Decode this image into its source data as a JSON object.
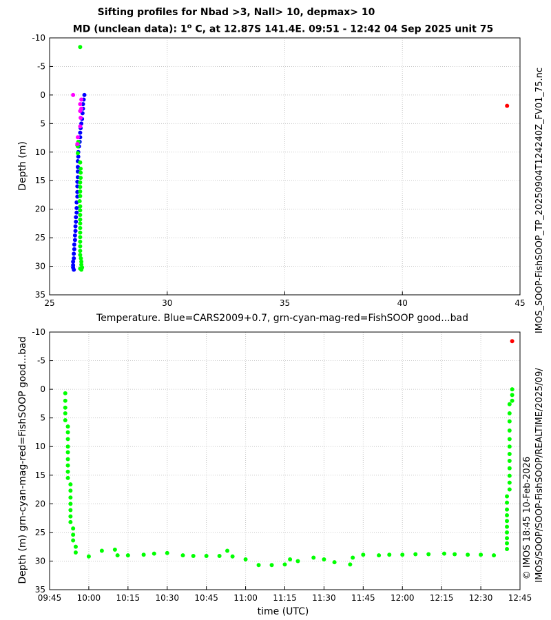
{
  "page": {
    "title_line1": "Sifting profiles for Nbad >3, Nall> 10, depmax> 10",
    "title_line2_prefix": "MD (unclean data): 1",
    "title_line2_degree": "o",
    "title_line2_suffix": " C, at 12.87S 141.4E. 09:51 - 12:42 04 Sep 2025 unit 75",
    "right_label_top": "IMOS_SOOP-FishSOOP_TP_20250904T124240Z_FV01_75.nc",
    "right_label_bottom": "IMOS/SOOP/SOOP-FishSOOP/REALTIME/2025/09/",
    "left_side_label": "© IMOS 18:45 10-Feb-2026"
  },
  "colors": {
    "blue": "#0000ff",
    "green": "#00ff00",
    "magenta": "#ff00ff",
    "red": "#ff0000",
    "grid": "#c8c8c8"
  },
  "chart_data": [
    {
      "type": "scatter",
      "xlabel": "Temperature. Blue=CARS2009+0.7, grn-cyan-mag-red=FishSOOP good...bad",
      "ylabel": "Depth (m)",
      "xlim": [
        25,
        45
      ],
      "ylim": [
        35,
        -10
      ],
      "xticks": [
        "25",
        "30",
        "35",
        "40",
        "45"
      ],
      "yticks": [
        "-10",
        "-5",
        "0",
        "5",
        "10",
        "15",
        "20",
        "25",
        "30",
        "35"
      ],
      "grid": true,
      "series": [
        {
          "color": "blue",
          "points": [
            [
              26.48,
              0.0
            ],
            [
              26.45,
              0.8
            ],
            [
              26.42,
              1.6
            ],
            [
              26.42,
              2.4
            ],
            [
              26.4,
              3.2
            ],
            [
              26.38,
              4.2
            ],
            [
              26.35,
              5.0
            ],
            [
              26.32,
              5.8
            ],
            [
              26.3,
              6.6
            ],
            [
              26.3,
              7.4
            ],
            [
              26.28,
              8.2
            ],
            [
              26.25,
              9.0
            ],
            [
              26.22,
              10.0
            ],
            [
              26.22,
              10.8
            ],
            [
              26.2,
              11.6
            ],
            [
              26.2,
              12.6
            ],
            [
              26.2,
              13.4
            ],
            [
              26.2,
              14.4
            ],
            [
              26.18,
              15.2
            ],
            [
              26.18,
              16.0
            ],
            [
              26.18,
              17.0
            ],
            [
              26.18,
              17.8
            ],
            [
              26.15,
              18.8
            ],
            [
              26.15,
              19.8
            ],
            [
              26.15,
              20.6
            ],
            [
              26.12,
              21.4
            ],
            [
              26.12,
              22.2
            ],
            [
              26.1,
              23.0
            ],
            [
              26.1,
              23.8
            ],
            [
              26.08,
              24.6
            ],
            [
              26.08,
              25.4
            ],
            [
              26.05,
              26.2
            ],
            [
              26.05,
              27.0
            ],
            [
              26.03,
              27.8
            ],
            [
              26.03,
              28.6
            ],
            [
              26.0,
              29.2
            ],
            [
              26.0,
              29.8
            ],
            [
              26.0,
              30.2
            ],
            [
              26.03,
              30.6
            ]
          ]
        },
        {
          "color": "green",
          "points": [
            [
              26.3,
              -8.4
            ],
            [
              26.3,
              11.8
            ],
            [
              26.32,
              12.9
            ],
            [
              26.32,
              13.6
            ],
            [
              26.32,
              14.5
            ],
            [
              26.3,
              15.3
            ],
            [
              26.3,
              16.1
            ],
            [
              26.3,
              16.9
            ],
            [
              26.3,
              17.7
            ],
            [
              26.28,
              18.6
            ],
            [
              26.3,
              19.5
            ],
            [
              26.3,
              20.2
            ],
            [
              26.3,
              21.0
            ],
            [
              26.3,
              21.8
            ],
            [
              26.3,
              22.5
            ],
            [
              26.3,
              23.3
            ],
            [
              26.3,
              24.1
            ],
            [
              26.3,
              24.9
            ],
            [
              26.3,
              25.7
            ],
            [
              26.3,
              26.5
            ],
            [
              26.3,
              27.3
            ],
            [
              26.3,
              28.0
            ],
            [
              26.33,
              28.6
            ],
            [
              26.35,
              29.2
            ],
            [
              26.35,
              29.7
            ],
            [
              26.38,
              30.2
            ],
            [
              26.35,
              30.6
            ],
            [
              26.3,
              30.4
            ],
            [
              26.2,
              10.2
            ],
            [
              26.2,
              9.0
            ],
            [
              26.22,
              8.2
            ],
            [
              26.18,
              8.8
            ]
          ]
        },
        {
          "color": "magenta",
          "points": [
            [
              26.0,
              0.0
            ],
            [
              26.35,
              0.8
            ],
            [
              26.3,
              1.6
            ],
            [
              26.35,
              2.4
            ],
            [
              26.3,
              2.8
            ],
            [
              26.32,
              4.0
            ],
            [
              26.3,
              5.5
            ],
            [
              26.2,
              7.4
            ],
            [
              26.18,
              8.6
            ]
          ]
        },
        {
          "color": "red",
          "points": [
            [
              44.45,
              1.9
            ]
          ]
        }
      ]
    },
    {
      "type": "scatter",
      "xlabel": "time (UTC)",
      "ylabel": "Depth (m) grn-cyan-mag-red=FishSOOP good...bad",
      "xlim": [
        "09:45",
        "12:45"
      ],
      "ylim": [
        35,
        -10
      ],
      "xticks": [
        "09:45",
        "10:00",
        "10:15",
        "10:30",
        "10:45",
        "11:00",
        "11:15",
        "11:30",
        "11:45",
        "12:00",
        "12:15",
        "12:30",
        "12:45"
      ],
      "yticks": [
        "-10",
        "-5",
        "0",
        "5",
        "10",
        "15",
        "20",
        "25",
        "30",
        "35"
      ],
      "grid": true,
      "series": [
        {
          "color": "green",
          "points": [
            [
              "09:51",
              0.7
            ],
            [
              "09:51",
              2.0
            ],
            [
              "09:51",
              3.2
            ],
            [
              "09:51",
              4.2
            ],
            [
              "09:51",
              5.4
            ],
            [
              "09:52",
              6.5
            ],
            [
              "09:52",
              7.5
            ],
            [
              "09:52",
              8.7
            ],
            [
              "09:52",
              10.0
            ],
            [
              "09:52",
              11.0
            ],
            [
              "09:52",
              12.2
            ],
            [
              "09:52",
              13.3
            ],
            [
              "09:52",
              14.4
            ],
            [
              "09:52",
              15.5
            ],
            [
              "09:53",
              16.6
            ],
            [
              "09:53",
              17.7
            ],
            [
              "09:53",
              18.9
            ],
            [
              "09:53",
              20.0
            ],
            [
              "09:53",
              21.1
            ],
            [
              "09:53",
              22.2
            ],
            [
              "09:53",
              23.2
            ],
            [
              "09:54",
              24.3
            ],
            [
              "09:54",
              25.4
            ],
            [
              "09:54",
              26.4
            ],
            [
              "09:55",
              27.5
            ],
            [
              "09:55",
              28.5
            ],
            [
              "10:00",
              29.2
            ],
            [
              "10:05",
              28.2
            ],
            [
              "10:10",
              28.0
            ],
            [
              "10:11",
              29.0
            ],
            [
              "10:15",
              29.0
            ],
            [
              "10:21",
              28.9
            ],
            [
              "10:25",
              28.7
            ],
            [
              "10:30",
              28.6
            ],
            [
              "10:36",
              29.0
            ],
            [
              "10:40",
              29.1
            ],
            [
              "10:45",
              29.1
            ],
            [
              "10:50",
              29.1
            ],
            [
              "10:53",
              28.2
            ],
            [
              "10:55",
              29.2
            ],
            [
              "11:00",
              29.7
            ],
            [
              "11:05",
              30.7
            ],
            [
              "11:10",
              30.7
            ],
            [
              "11:15",
              30.6
            ],
            [
              "11:17",
              29.7
            ],
            [
              "11:20",
              30.0
            ],
            [
              "11:26",
              29.4
            ],
            [
              "11:30",
              29.7
            ],
            [
              "11:34",
              30.2
            ],
            [
              "11:40",
              30.6
            ],
            [
              "11:41",
              29.4
            ],
            [
              "11:45",
              28.9
            ],
            [
              "11:51",
              29.0
            ],
            [
              "11:55",
              28.9
            ],
            [
              "12:00",
              28.9
            ],
            [
              "12:05",
              28.8
            ],
            [
              "12:10",
              28.8
            ],
            [
              "12:16",
              28.7
            ],
            [
              "12:20",
              28.8
            ],
            [
              "12:25",
              28.9
            ],
            [
              "12:30",
              28.9
            ],
            [
              "12:35",
              29.0
            ],
            [
              "12:40",
              27.9
            ],
            [
              "12:40",
              26.9
            ],
            [
              "12:40",
              26.0
            ],
            [
              "12:40",
              25.0
            ],
            [
              "12:40",
              24.0
            ],
            [
              "12:40",
              23.0
            ],
            [
              "12:40",
              22.0
            ],
            [
              "12:40",
              21.0
            ],
            [
              "12:40",
              19.8
            ],
            [
              "12:40",
              18.7
            ],
            [
              "12:41",
              17.5
            ],
            [
              "12:41",
              16.3
            ],
            [
              "12:41",
              15.1
            ],
            [
              "12:41",
              13.8
            ],
            [
              "12:41",
              12.5
            ],
            [
              "12:41",
              11.3
            ],
            [
              "12:41",
              10.0
            ],
            [
              "12:41",
              8.7
            ],
            [
              "12:41",
              7.2
            ],
            [
              "12:41",
              5.6
            ],
            [
              "12:41",
              4.2
            ],
            [
              "12:41",
              2.6
            ],
            [
              "12:42",
              2.0
            ],
            [
              "12:42",
              1.0
            ],
            [
              "12:42",
              0.0
            ]
          ]
        },
        {
          "color": "red",
          "points": [
            [
              "12:42",
              -8.4
            ]
          ]
        }
      ]
    }
  ]
}
